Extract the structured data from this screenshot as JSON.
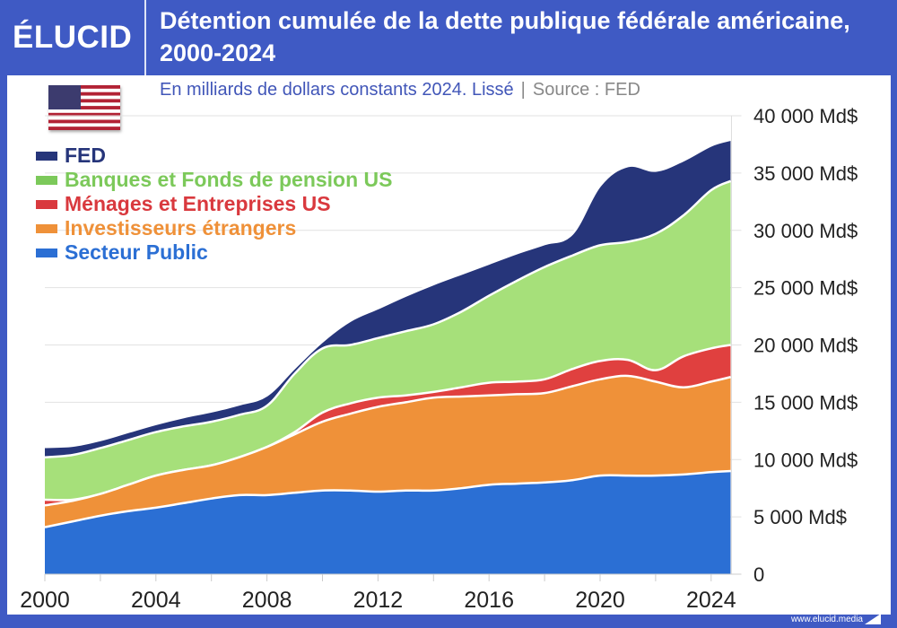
{
  "header": {
    "logo": "ÉLUCID",
    "title": "Détention cumulée de la dette publique fédérale américaine, 2000-2024",
    "subtitle": "En milliards de dollars constants 2024. Lissé",
    "source": "Source : FED"
  },
  "footer": {
    "url": "www.elucid.media"
  },
  "flag_icon": "us-flag-icon",
  "chart_data": {
    "type": "area",
    "stacked": true,
    "smoothed": true,
    "title": "Détention cumulée de la dette publique fédérale américaine, 2000-2024",
    "subtitle": "En milliards de dollars constants 2024. Lissé",
    "xlabel": "",
    "ylabel": "",
    "xlim": [
      2000,
      2024.7
    ],
    "ylim": [
      0,
      40000
    ],
    "x_ticks": [
      "2000",
      "2004",
      "2008",
      "2012",
      "2016",
      "2020",
      "2024"
    ],
    "y_ticks": [
      "0",
      "5 000 Md$",
      "10 000 Md$",
      "15 000 Md$",
      "20 000 Md$",
      "25 000 Md$",
      "30 000 Md$",
      "35 000 Md$",
      "40 000 Md$"
    ],
    "y_axis_position": "right",
    "grid": true,
    "legend_position": "top-left",
    "x": [
      2000,
      2001,
      2002,
      2003,
      2004,
      2005,
      2006,
      2007,
      2008,
      2009,
      2010,
      2011,
      2012,
      2013,
      2014,
      2015,
      2016,
      2017,
      2018,
      2019,
      2020,
      2021,
      2022,
      2023,
      2024,
      2024.7
    ],
    "series": [
      {
        "name": "Secteur Public",
        "color": "#2b6fd4",
        "values": [
          4100,
          4600,
          5100,
          5500,
          5800,
          6200,
          6600,
          6900,
          6900,
          7100,
          7300,
          7300,
          7200,
          7300,
          7300,
          7500,
          7800,
          7900,
          8000,
          8200,
          8600,
          8600,
          8600,
          8700,
          8900,
          9000
        ]
      },
      {
        "name": "Investisseurs étrangers",
        "color": "#ef9139",
        "values": [
          1900,
          1800,
          1900,
          2300,
          2800,
          2900,
          2900,
          3300,
          4200,
          5100,
          6000,
          6700,
          7400,
          7700,
          8100,
          8000,
          7800,
          7800,
          7800,
          8200,
          8400,
          8700,
          8200,
          7600,
          7900,
          8200
        ]
      },
      {
        "name": "Ménages et Entreprises US",
        "color": "#e0403f",
        "values": [
          500,
          100,
          0,
          0,
          0,
          0,
          0,
          0,
          0,
          200,
          800,
          900,
          800,
          600,
          500,
          800,
          1100,
          1100,
          1200,
          1500,
          1600,
          1400,
          1000,
          2700,
          2900,
          2800
        ]
      },
      {
        "name": "Banques et Fonds de pension US",
        "color": "#a6e07a",
        "values": [
          3700,
          3900,
          4000,
          3900,
          3800,
          3800,
          3800,
          3700,
          3600,
          5100,
          5600,
          5100,
          5200,
          5600,
          5900,
          6600,
          7600,
          8800,
          9800,
          9900,
          10100,
          10300,
          11900,
          12300,
          13800,
          14300
        ]
      },
      {
        "name": "FED",
        "color": "#26357a",
        "values": [
          900,
          800,
          700,
          700,
          700,
          800,
          900,
          900,
          900,
          500,
          600,
          2100,
          2600,
          3100,
          3500,
          3300,
          2800,
          2400,
          2000,
          1900,
          5200,
          6600,
          5500,
          4800,
          3900,
          3600
        ]
      }
    ],
    "legend_order": [
      "FED",
      "Banques et Fonds de pension US",
      "Ménages et Entreprises US",
      "Investisseurs étrangers",
      "Secteur Public"
    ],
    "legend_colors": {
      "FED": "#26357a",
      "Banques et Fonds de pension US": "#7cc95a",
      "Ménages et Entreprises US": "#d9393e",
      "Investisseurs étrangers": "#ef9139",
      "Secteur Public": "#2b6fd4"
    }
  }
}
